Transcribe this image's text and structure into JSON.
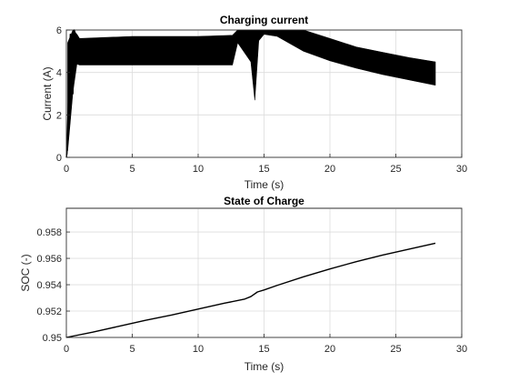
{
  "chart_data": [
    {
      "type": "line",
      "title": "Charging current",
      "xlabel": "Time (s)",
      "ylabel": "Current (A)",
      "xlim": [
        0,
        30
      ],
      "ylim": [
        0,
        6
      ],
      "xticks": [
        "0",
        "5",
        "10",
        "15",
        "20",
        "25",
        "30"
      ],
      "yticks": [
        "0",
        "2",
        "4",
        "6"
      ],
      "grid": true,
      "band_upper": [
        [
          0.1,
          5.4
        ],
        [
          0.5,
          6.0
        ],
        [
          0.8,
          5.8
        ],
        [
          1.0,
          5.6
        ],
        [
          5,
          5.7
        ],
        [
          10,
          5.7
        ],
        [
          12.6,
          5.75
        ],
        [
          13.0,
          6.0
        ],
        [
          14.0,
          6.0
        ],
        [
          15.0,
          6.0
        ],
        [
          18,
          6.0
        ],
        [
          20,
          5.6
        ],
        [
          22,
          5.2
        ],
        [
          24,
          4.95
        ],
        [
          26,
          4.7
        ],
        [
          28,
          4.5
        ]
      ],
      "band_lower": [
        [
          0.1,
          0.3
        ],
        [
          0.5,
          3.1
        ],
        [
          0.8,
          4.4
        ],
        [
          1.0,
          4.35
        ],
        [
          5,
          4.35
        ],
        [
          10,
          4.35
        ],
        [
          12.6,
          4.35
        ],
        [
          13.0,
          5.4
        ],
        [
          14.0,
          4.5
        ],
        [
          14.3,
          2.7
        ],
        [
          14.6,
          5.5
        ],
        [
          15.0,
          5.8
        ],
        [
          16,
          5.7
        ],
        [
          18,
          5.0
        ],
        [
          20,
          4.55
        ],
        [
          22,
          4.2
        ],
        [
          24,
          3.9
        ],
        [
          26,
          3.65
        ],
        [
          28,
          3.4
        ]
      ],
      "series": [
        {
          "x": [
            0,
            0.05,
            0.1,
            0.3,
            0.5,
            0.6,
            0.8,
            1.0,
            1.2
          ],
          "y": [
            0,
            0.2,
            1.5,
            5.8,
            3.0,
            6.0,
            5.6,
            5.0,
            4.4
          ]
        }
      ]
    },
    {
      "type": "line",
      "title": "State of Charge",
      "xlabel": "Time (s)",
      "ylabel": "SOC (-)",
      "xlim": [
        0,
        30
      ],
      "ylim": [
        0.95,
        0.9598
      ],
      "xticks": [
        "0",
        "5",
        "10",
        "15",
        "20",
        "25",
        "30"
      ],
      "yticks": [
        "0.95",
        "0.952",
        "0.954",
        "0.956",
        "0.958"
      ],
      "grid": true,
      "series": [
        {
          "x": [
            0,
            2,
            4,
            6,
            8,
            10,
            12,
            13.5,
            14.0,
            14.5,
            15,
            16,
            18,
            20,
            22,
            24,
            26,
            28
          ],
          "y": [
            0.95,
            0.9504,
            0.95085,
            0.9513,
            0.9517,
            0.95215,
            0.9526,
            0.9529,
            0.9531,
            0.95345,
            0.9536,
            0.95395,
            0.9546,
            0.9552,
            0.95575,
            0.95625,
            0.9567,
            0.95715
          ]
        }
      ]
    }
  ]
}
